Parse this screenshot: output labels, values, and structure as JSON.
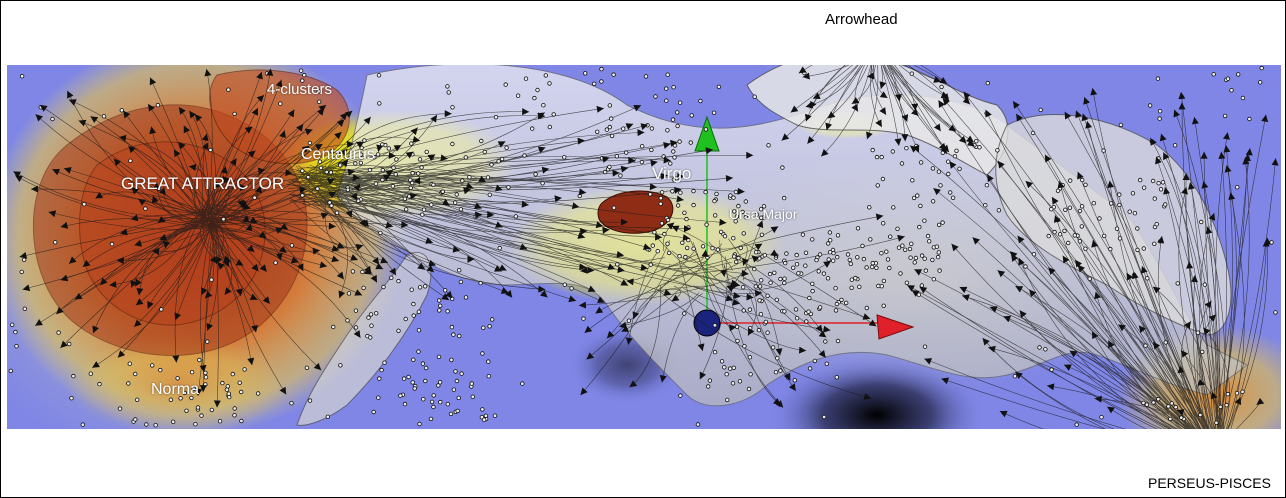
{
  "figure": {
    "labels": {
      "arrowhead": "Arrowhead",
      "four_clusters": "4-clusters",
      "centaurus": "Centaurus",
      "great_attractor": "GREAT ATTRACTOR",
      "virgo": "Virgo",
      "ursa_major": "Ursa Major",
      "norma": "Norma",
      "perseus_pisces": "PERSEUS-PISCES"
    },
    "colors": {
      "background_blue": "#7f86e6",
      "attractor_red": "#c0431e",
      "dense_yellow": "#f2f000",
      "surface_gray": "#d9d9d9",
      "axis_x": "#e0202a",
      "axis_y": "#20c020",
      "axis_origin": "#1a237e"
    }
  }
}
